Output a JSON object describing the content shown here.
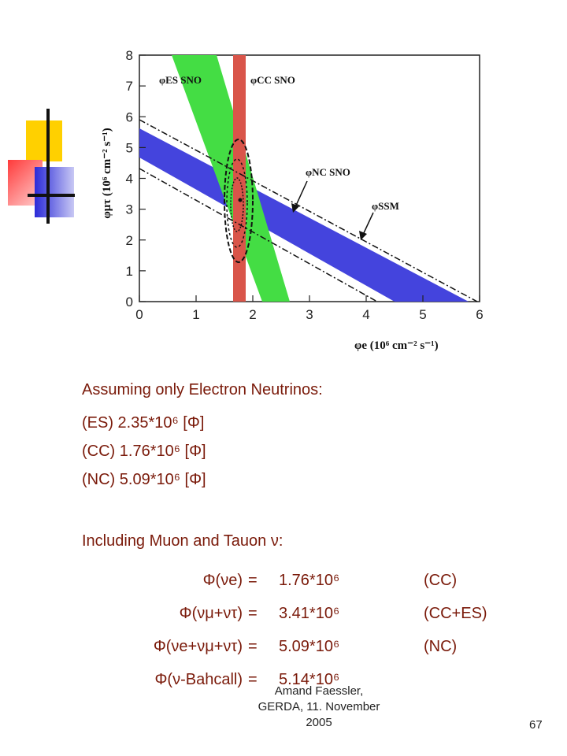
{
  "figure": {
    "x_tick_labels": [
      "0",
      "1",
      "2",
      "3",
      "4",
      "5",
      "6"
    ],
    "y_tick_labels": [
      "0",
      "1",
      "2",
      "3",
      "4",
      "5",
      "6",
      "7",
      "8"
    ],
    "x_axis_label": "φe (10⁶ cm⁻² s⁻¹)",
    "y_axis_label": "φμτ (10⁶ cm⁻² s⁻¹)",
    "label_es": "φES SNO",
    "label_cc": "φCC SNO",
    "label_nc": "φNC SNO",
    "label_ssm": "φSSM",
    "colors": {
      "es_band": "#44dd44",
      "cc_band": "#d9554a",
      "nc_band": "#4444dd"
    }
  },
  "text": {
    "heading1": "Assuming only Electron Neutrinos:",
    "es_line": "(ES) 2.35*10⁶ [Φ]",
    "cc_line": "(CC) 1.76*10⁶ [Φ]",
    "nc_line": "(NC) 5.09*10⁶ [Φ]",
    "heading2": "Including Muon and Tauon ν:"
  },
  "table": [
    {
      "lhs": "Φ(νe)",
      "eq": "=",
      "value": "1.76*10⁶",
      "tag": "(CC)"
    },
    {
      "lhs": "Φ(νμ+ντ)",
      "eq": "=",
      "value": "3.41*10⁶",
      "tag": "(CC+ES)"
    },
    {
      "lhs": "Φ(νe+νμ+ντ)",
      "eq": "=",
      "value": "5.09*10⁶",
      "tag": "(NC)"
    },
    {
      "lhs": "Φ(ν-Bahcall)",
      "eq": "=",
      "value": "5.14*10⁶",
      "tag": ""
    }
  ],
  "footer": {
    "line1": "Amand Faessler,",
    "line2": "GERDA, 11. November",
    "line3": "2005",
    "page_number": "67"
  }
}
